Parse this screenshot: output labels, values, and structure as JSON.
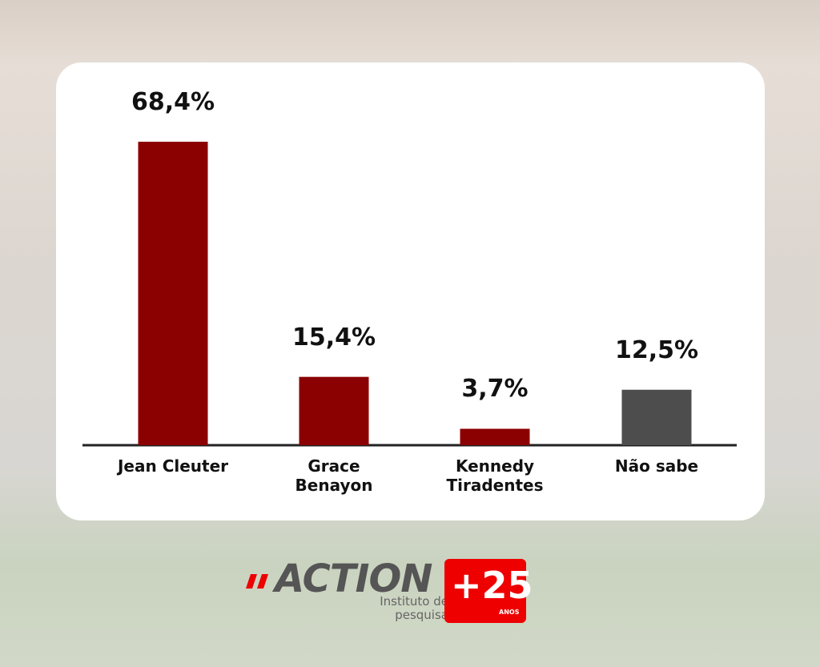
{
  "chart_data": {
    "type": "bar",
    "categories": [
      "Jean Cleuter",
      "Grace Benayon",
      "Kennedy Tiradentes",
      "Não sabe"
    ],
    "values": [
      68.4,
      15.4,
      3.7,
      12.5
    ],
    "value_labels": [
      "68,4%",
      "15,4%",
      "3,7%",
      "12,5%"
    ],
    "colors": [
      "#8b0000",
      "#8b0000",
      "#8b0000",
      "#4d4d4d"
    ]
  },
  "logo": {
    "name": "ACTION",
    "subtitle": "Instituto de pesquisa",
    "badge": "+25",
    "badge_note": "ANOS"
  }
}
